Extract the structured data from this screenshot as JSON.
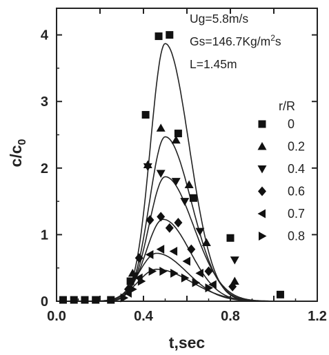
{
  "chart_data": {
    "type": "scatter",
    "xlabel": "t,sec",
    "ylabel": "c/c",
    "ylabel_sub": "0",
    "xlim": [
      0.0,
      1.2
    ],
    "ylim": [
      0,
      4.4
    ],
    "xticks": [
      0.0,
      0.2,
      0.4,
      0.6,
      0.8,
      1.0,
      1.2
    ],
    "xtick_labels": [
      "0.0",
      "",
      "0.4",
      "",
      "0.8",
      "",
      "1.2"
    ],
    "yticks": [
      0,
      1,
      2,
      3,
      4
    ],
    "ytick_labels": [
      "0",
      "1",
      "2",
      "3",
      "4"
    ],
    "annotations": [
      {
        "text": "Ug=5.8m/s",
        "html": false
      },
      {
        "text": "Gs=146.7Kg/m",
        "sup": "2",
        "tail": "s"
      },
      {
        "text": "L=1.45m",
        "html": false
      }
    ],
    "legend_title": "r/R",
    "legend_position": "right",
    "grid": false,
    "series": [
      {
        "name": "0",
        "marker": "square",
        "points": [
          [
            0.03,
            0.02
          ],
          [
            0.08,
            0.02
          ],
          [
            0.13,
            0.02
          ],
          [
            0.18,
            0.02
          ],
          [
            0.25,
            0.02
          ],
          [
            0.34,
            0.3
          ],
          [
            0.41,
            2.8
          ],
          [
            0.47,
            3.98
          ],
          [
            0.52,
            4.0
          ],
          [
            0.56,
            2.52
          ],
          [
            0.63,
            1.55
          ],
          [
            0.8,
            0.95
          ],
          [
            1.03,
            0.1
          ]
        ],
        "fit": {
          "peak": 3.87,
          "t0": 0.5,
          "sigma_left": 0.068,
          "sigma_right": 0.11
        }
      },
      {
        "name": "0.2",
        "marker": "triangle-up",
        "points": [
          [
            0.35,
            0.42
          ],
          [
            0.42,
            2.05
          ],
          [
            0.48,
            2.6
          ],
          [
            0.55,
            2.42
          ],
          [
            0.61,
            1.75
          ],
          [
            0.69,
            0.88
          ],
          [
            0.82,
            0.3
          ]
        ],
        "fit": {
          "peak": 2.47,
          "t0": 0.5,
          "sigma_left": 0.072,
          "sigma_right": 0.12
        }
      },
      {
        "name": "0.4",
        "marker": "triangle-down",
        "points": [
          [
            0.36,
            0.38
          ],
          [
            0.42,
            2.02
          ],
          [
            0.48,
            1.92
          ],
          [
            0.55,
            1.8
          ],
          [
            0.59,
            1.5
          ],
          [
            0.66,
            1.05
          ],
          [
            0.82,
            0.62
          ]
        ],
        "fit": {
          "peak": 1.87,
          "t0": 0.5,
          "sigma_left": 0.075,
          "sigma_right": 0.13
        }
      },
      {
        "name": "0.6",
        "marker": "diamond",
        "points": [
          [
            0.33,
            0.18
          ],
          [
            0.38,
            0.65
          ],
          [
            0.43,
            1.22
          ],
          [
            0.48,
            1.27
          ],
          [
            0.52,
            1.1
          ],
          [
            0.56,
            1.18
          ],
          [
            0.62,
            0.78
          ],
          [
            0.7,
            0.45
          ],
          [
            0.81,
            0.22
          ]
        ],
        "fit": {
          "peak": 1.23,
          "t0": 0.49,
          "sigma_left": 0.078,
          "sigma_right": 0.125
        }
      },
      {
        "name": "0.7",
        "marker": "triangle-left",
        "points": [
          [
            0.33,
            0.12
          ],
          [
            0.38,
            0.35
          ],
          [
            0.43,
            0.7
          ],
          [
            0.48,
            0.78
          ],
          [
            0.54,
            0.75
          ],
          [
            0.6,
            0.6
          ],
          [
            0.66,
            0.42
          ],
          [
            0.72,
            0.25
          ]
        ],
        "fit": {
          "peak": 0.72,
          "t0": 0.46,
          "sigma_left": 0.08,
          "sigma_right": 0.14
        }
      },
      {
        "name": "0.8",
        "marker": "triangle-right",
        "points": [
          [
            0.31,
            0.05
          ],
          [
            0.35,
            0.18
          ],
          [
            0.39,
            0.3
          ],
          [
            0.44,
            0.45
          ],
          [
            0.49,
            0.45
          ],
          [
            0.54,
            0.42
          ],
          [
            0.59,
            0.35
          ],
          [
            0.64,
            0.28
          ],
          [
            0.7,
            0.2
          ]
        ],
        "fit": {
          "peak": 0.48,
          "t0": 0.46,
          "sigma_left": 0.085,
          "sigma_right": 0.16
        }
      }
    ]
  }
}
